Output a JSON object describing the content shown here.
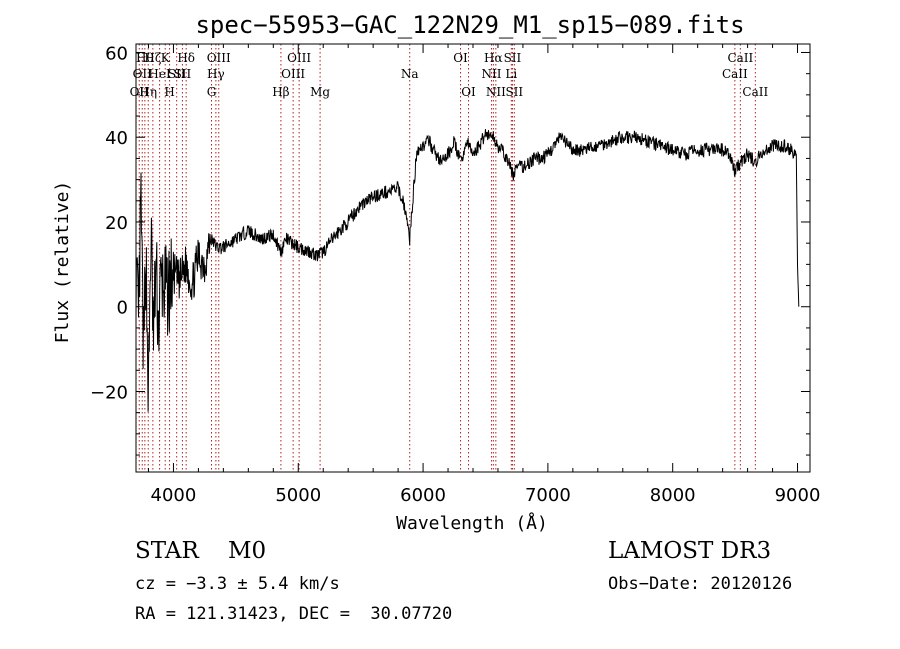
{
  "chart_data": {
    "type": "line",
    "title": "spec−55953−GAC_122N29_M1_sp15−089.fits",
    "xlabel": "Wavelength (Å)",
    "ylabel": "Flux (relative)",
    "xlim": [
      3700,
      9100
    ],
    "ylim": [
      -39,
      62
    ],
    "x_ticks": [
      4000,
      5000,
      6000,
      7000,
      8000,
      9000
    ],
    "x_tick_labels": [
      "4000",
      "5000",
      "6000",
      "7000",
      "8000",
      "9000"
    ],
    "y_ticks": [
      -20,
      0,
      20,
      40,
      60
    ],
    "y_tick_labels": [
      "−20",
      "0",
      "20",
      "40",
      "60"
    ],
    "grid": false,
    "series": [
      {
        "name": "spectrum",
        "x": [
          3700,
          3720,
          3740,
          3760,
          3780,
          3800,
          3820,
          3840,
          3860,
          3880,
          3900,
          3950,
          4000,
          4050,
          4100,
          4150,
          4200,
          4250,
          4300,
          4350,
          4400,
          4500,
          4600,
          4700,
          4800,
          4861,
          4900,
          5000,
          5100,
          5150,
          5200,
          5300,
          5400,
          5500,
          5600,
          5700,
          5800,
          5850,
          5893,
          5920,
          5950,
          6000,
          6050,
          6100,
          6150,
          6200,
          6250,
          6300,
          6350,
          6400,
          6450,
          6500,
          6563,
          6600,
          6650,
          6700,
          6720,
          6750,
          6800,
          6850,
          6900,
          6950,
          7000,
          7050,
          7100,
          7200,
          7300,
          7400,
          7500,
          7600,
          7700,
          7800,
          7900,
          8000,
          8100,
          8200,
          8300,
          8400,
          8450,
          8498,
          8542,
          8600,
          8662,
          8700,
          8800,
          8900,
          8950,
          8990,
          9000,
          9010
        ],
        "y": [
          8,
          -5,
          25,
          -12,
          12,
          -22,
          18,
          -8,
          10,
          -5,
          6,
          3,
          8,
          6,
          10,
          5,
          12,
          10,
          16,
          14,
          14,
          16,
          18,
          16,
          17,
          13,
          16,
          14,
          13,
          12,
          13,
          17,
          20,
          24,
          26,
          27,
          28,
          24,
          16,
          26,
          37,
          38,
          39,
          36,
          34,
          36,
          39,
          34,
          39,
          36,
          38,
          41,
          40,
          38,
          36,
          33,
          31,
          33,
          33,
          34,
          35,
          35,
          36,
          38,
          40,
          37,
          37,
          38,
          39,
          40,
          40,
          39,
          38,
          37,
          36,
          37,
          37,
          37,
          36,
          32,
          34,
          36,
          34,
          36,
          38,
          38,
          37,
          36,
          10,
          0
        ]
      }
    ],
    "lines": [
      {
        "x": 3726,
        "label": "OII",
        "row": 2
      },
      {
        "x": 3750,
        "label": "OII",
        "row": 1
      },
      {
        "x": 3771,
        "label": "Hθ",
        "row": 0
      },
      {
        "x": 3798,
        "label": "Hη",
        "row": 2
      },
      {
        "x": 3835,
        "label": "Hζ",
        "row": 0
      },
      {
        "x": 3889,
        "label": "HeI",
        "row": 1
      },
      {
        "x": 3934,
        "label": "K",
        "row": 0
      },
      {
        "x": 3969,
        "label": "H",
        "row": 2
      },
      {
        "x": 4026,
        "label": "SII",
        "row": 1
      },
      {
        "x": 4072,
        "label": "SII",
        "row": 1
      },
      {
        "x": 4102,
        "label": "Hδ",
        "row": 0
      },
      {
        "x": 4305,
        "label": "G",
        "row": 2
      },
      {
        "x": 4340,
        "label": "Hγ",
        "row": 1
      },
      {
        "x": 4363,
        "label": "OIII",
        "row": 0
      },
      {
        "x": 4861,
        "label": "Hβ",
        "row": 2
      },
      {
        "x": 4959,
        "label": "OIII",
        "row": 1
      },
      {
        "x": 5007,
        "label": "OIII",
        "row": 0
      },
      {
        "x": 5175,
        "label": "Mg",
        "row": 2
      },
      {
        "x": 5893,
        "label": "Na",
        "row": 1
      },
      {
        "x": 6300,
        "label": "OI",
        "row": 0
      },
      {
        "x": 6364,
        "label": "OI",
        "row": 2
      },
      {
        "x": 6548,
        "label": "NII",
        "row": 1
      },
      {
        "x": 6563,
        "label": "Hα",
        "row": 0
      },
      {
        "x": 6583,
        "label": "NII",
        "row": 2
      },
      {
        "x": 6707,
        "label": "Li",
        "row": 1
      },
      {
        "x": 6716,
        "label": "SII",
        "row": 0
      },
      {
        "x": 6731,
        "label": "SII",
        "row": 2
      },
      {
        "x": 8498,
        "label": "CaII",
        "row": 1
      },
      {
        "x": 8542,
        "label": "CaII",
        "row": 0
      },
      {
        "x": 8662,
        "label": "CaII",
        "row": 2
      }
    ]
  },
  "info": {
    "classification": "STAR    M0",
    "survey": "LAMOST DR3",
    "redshift": "cz = −3.3 ± 5.4 km/s",
    "obs_date": "Obs−Date: 20120126",
    "coords": "RA = 121.31423, DEC =  30.07720"
  },
  "colors": {
    "spectrum": "#000000",
    "line_markers": "#b22222",
    "axes": "#000000"
  }
}
